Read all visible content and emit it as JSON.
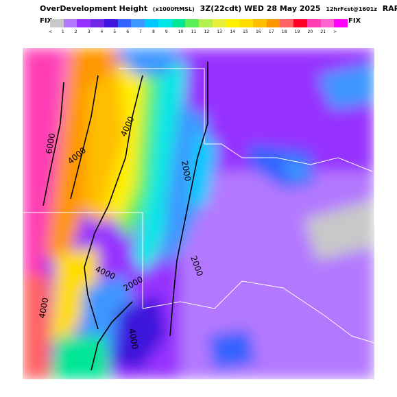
{
  "header": {
    "title_main": "OverDevelopment Height",
    "title_units": "(x1000ftMSL)",
    "title_time": "3Z(22cdt) WED 28 May 2025",
    "title_fcst": "12hrFcst@1601z",
    "title_model": "RAP"
  },
  "colorbar": {
    "left_label": "FIX",
    "right_label": "FIX",
    "tick_labels": [
      "<",
      "1",
      "2",
      "3",
      "4",
      "5",
      "6",
      "7",
      "8",
      "9",
      "10",
      "11",
      "12",
      "13",
      "14",
      "15",
      "16",
      "17",
      "18",
      "19",
      "20",
      "21",
      ">"
    ],
    "colors": [
      "#c8c8c8",
      "#b478ff",
      "#9632ff",
      "#6e28e6",
      "#3c14dc",
      "#3264ff",
      "#3c96ff",
      "#00c8ff",
      "#00e6e6",
      "#00e696",
      "#5af05a",
      "#b4f050",
      "#e6f03c",
      "#fff000",
      "#ffdc00",
      "#ffbe00",
      "#ff9600",
      "#ff6464",
      "#ff0028",
      "#ff3cb4",
      "#ff64d2",
      "#ff00ff"
    ]
  },
  "map": {
    "contour_labels": [
      "4000",
      "4000",
      "4000",
      "2000",
      "2000",
      "2000",
      "4000",
      "4000",
      "6000"
    ]
  }
}
